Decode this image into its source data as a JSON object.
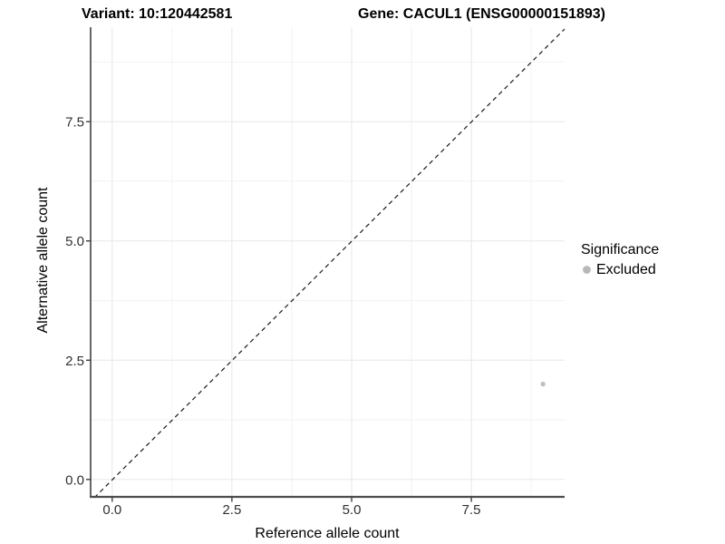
{
  "chart_data": {
    "type": "scatter",
    "titles": {
      "left": "Variant: 10:120442581",
      "right": "Gene: CACUL1 (ENSG00000151893)"
    },
    "xlabel": "Reference allele count",
    "ylabel": "Alternative allele count",
    "xlim": [
      -0.45,
      9.45
    ],
    "ylim": [
      -0.45,
      9.45
    ],
    "x_ticks": [
      "0.0",
      "2.5",
      "5.0",
      "7.5"
    ],
    "y_ticks": [
      "0.0",
      "2.5",
      "5.0",
      "7.5"
    ],
    "grid": "major and minor gridlines, light grey on white",
    "reference_line": {
      "type": "identity y=x",
      "style": "dashed",
      "color": "#000000"
    },
    "series": [
      {
        "name": "Excluded",
        "color": "#bebebe",
        "points": [
          {
            "x": 9,
            "y": 2
          }
        ]
      }
    ],
    "legend": {
      "title": "Significance",
      "position": "right",
      "entries": [
        {
          "label": "Excluded",
          "color": "#b8b8b8"
        }
      ]
    }
  }
}
